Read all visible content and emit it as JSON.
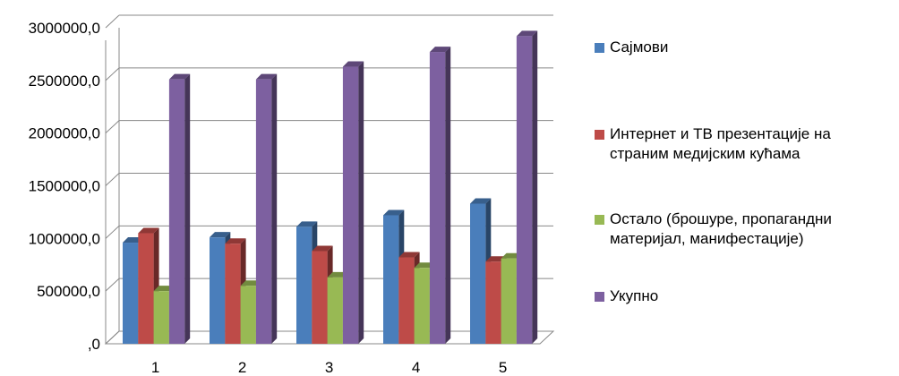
{
  "chart_data": {
    "type": "bar",
    "categories": [
      "1",
      "2",
      "3",
      "4",
      "5"
    ],
    "series": [
      {
        "name": "Сајмови",
        "values": [
          960000,
          1010000,
          1110000,
          1220000,
          1330000
        ],
        "color": "#4A7EBB"
      },
      {
        "name": "Интернет и ТВ презентације на страним медијским кућама",
        "values": [
          1050000,
          950000,
          880000,
          820000,
          780000
        ],
        "color": "#BE4B48"
      },
      {
        "name": "Остало (брошуре, пропагандни материјал, манифестације)",
        "values": [
          500000,
          550000,
          630000,
          720000,
          810000
        ],
        "color": "#98B954"
      },
      {
        "name": "Укупно",
        "values": [
          2510000,
          2510000,
          2630000,
          2770000,
          2920000
        ],
        "color": "#7D60A0"
      }
    ],
    "y_ticks": [
      "3000000,0",
      "2500000,0",
      "2000000,0",
      "1500000,0",
      "1000000,0",
      "500000,0",
      ",0"
    ],
    "ylim": [
      0,
      3000000
    ],
    "grid": true,
    "three_d": true,
    "legend_position": "right"
  },
  "legend": {
    "item_0": "Сајмови",
    "item_1": "Интернет и ТВ презентације на\nстраним медијским кућама",
    "item_2": "Остало (брошуре, пропагандни\nматеријал, манифестације)",
    "item_3": "Укупно"
  }
}
